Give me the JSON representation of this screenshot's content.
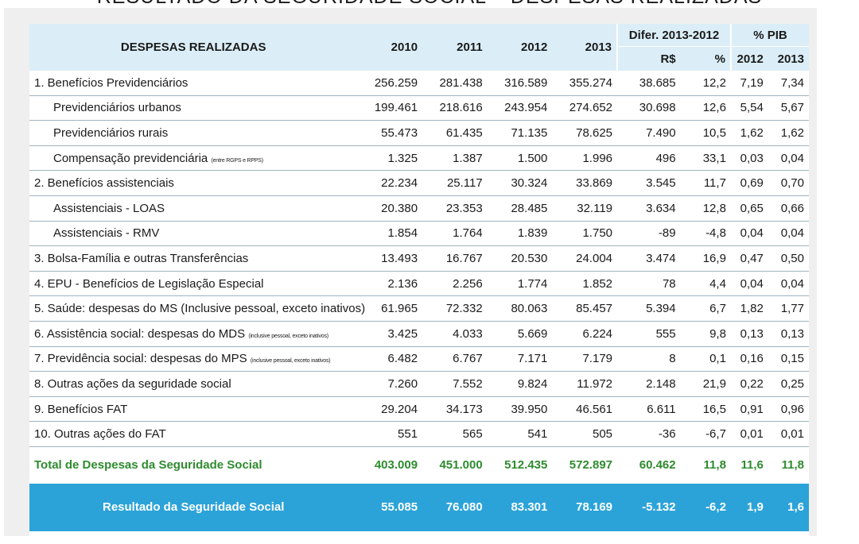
{
  "page_title": "RESULTADO DA SEGURIDADE SOCIAL – DESPESAS REALIZADAS",
  "header": {
    "label": "DESPESAS REALIZADAS",
    "years": [
      "2010",
      "2011",
      "2012",
      "2013"
    ],
    "difer_group": "Difer. 2013-2012",
    "difer_rs": "R$",
    "difer_pct": "%",
    "pib_group": "% PIB",
    "pib_2012": "2012",
    "pib_2013": "2013"
  },
  "rows": [
    {
      "label": "1. Benefícios Previdenciários",
      "note": "",
      "y2010": "256.259",
      "y2011": "281.438",
      "y2012": "316.589",
      "y2013": "355.274",
      "dif_rs": "38.685",
      "dif_pct": "12,2",
      "pib2012": "7,19",
      "pib2013": "7,34"
    },
    {
      "label": "Previdenciários urbanos",
      "note": "",
      "y2010": "199.461",
      "y2011": "218.616",
      "y2012": "243.954",
      "y2013": "274.652",
      "dif_rs": "30.698",
      "dif_pct": "12,6",
      "pib2012": "5,54",
      "pib2013": "5,67"
    },
    {
      "label": "Previdenciários rurais",
      "note": "",
      "y2010": "55.473",
      "y2011": "61.435",
      "y2012": "71.135",
      "y2013": "78.625",
      "dif_rs": "7.490",
      "dif_pct": "10,5",
      "pib2012": "1,62",
      "pib2013": "1,62"
    },
    {
      "label": "Compensação previdenciária",
      "note": "(entre RGPS e RPPS)",
      "y2010": "1.325",
      "y2011": "1.387",
      "y2012": "1.500",
      "y2013": "1.996",
      "dif_rs": "496",
      "dif_pct": "33,1",
      "pib2012": "0,03",
      "pib2013": "0,04"
    },
    {
      "label": "2. Benefícios assistenciais",
      "note": "",
      "y2010": "22.234",
      "y2011": "25.117",
      "y2012": "30.324",
      "y2013": "33.869",
      "dif_rs": "3.545",
      "dif_pct": "11,7",
      "pib2012": "0,69",
      "pib2013": "0,70"
    },
    {
      "label": "Assistenciais - LOAS",
      "note": "",
      "y2010": "20.380",
      "y2011": "23.353",
      "y2012": "28.485",
      "y2013": "32.119",
      "dif_rs": "3.634",
      "dif_pct": "12,8",
      "pib2012": "0,65",
      "pib2013": "0,66"
    },
    {
      "label": "Assistenciais - RMV",
      "note": "",
      "y2010": "1.854",
      "y2011": "1.764",
      "y2012": "1.839",
      "y2013": "1.750",
      "dif_rs": "-89",
      "dif_pct": "-4,8",
      "pib2012": "0,04",
      "pib2013": "0,04"
    },
    {
      "label": "3. Bolsa-Família e outras Transferências",
      "note": "",
      "y2010": "13.493",
      "y2011": "16.767",
      "y2012": "20.530",
      "y2013": "24.004",
      "dif_rs": "3.474",
      "dif_pct": "16,9",
      "pib2012": "0,47",
      "pib2013": "0,50"
    },
    {
      "label": "4. EPU - Benefícios de Legislação Especial",
      "note": "",
      "y2010": "2.136",
      "y2011": "2.256",
      "y2012": "1.774",
      "y2013": "1.852",
      "dif_rs": "78",
      "dif_pct": "4,4",
      "pib2012": "0,04",
      "pib2013": "0,04"
    },
    {
      "label": "5. Saúde: despesas do MS (Inclusive pessoal, exceto inativos)",
      "note": "",
      "y2010": "61.965",
      "y2011": "72.332",
      "y2012": "80.063",
      "y2013": "85.457",
      "dif_rs": "5.394",
      "dif_pct": "6,7",
      "pib2012": "1,82",
      "pib2013": "1,77"
    },
    {
      "label": "6. Assistência social: despesas do MDS",
      "note": "(inclusive pessoal, exceto inativos)",
      "y2010": "3.425",
      "y2011": "4.033",
      "y2012": "5.669",
      "y2013": "6.224",
      "dif_rs": "555",
      "dif_pct": "9,8",
      "pib2012": "0,13",
      "pib2013": "0,13"
    },
    {
      "label": "7. Previdência social: despesas do MPS",
      "note": "(inclusive pessoal, exceto inativos)",
      "y2010": "6.482",
      "y2011": "6.767",
      "y2012": "7.171",
      "y2013": "7.179",
      "dif_rs": "8",
      "dif_pct": "0,1",
      "pib2012": "0,16",
      "pib2013": "0,15"
    },
    {
      "label": "8. Outras ações da seguridade social",
      "note": "",
      "y2010": "7.260",
      "y2011": "7.552",
      "y2012": "9.824",
      "y2013": "11.972",
      "dif_rs": "2.148",
      "dif_pct": "21,9",
      "pib2012": "0,22",
      "pib2013": "0,25"
    },
    {
      "label": "9. Benefícios FAT",
      "note": "",
      "y2010": "29.204",
      "y2011": "34.173",
      "y2012": "39.950",
      "y2013": "46.561",
      "dif_rs": "6.611",
      "dif_pct": "16,5",
      "pib2012": "0,91",
      "pib2013": "0,96"
    },
    {
      "label": "10. Outras ações do FAT",
      "note": "",
      "y2010": "551",
      "y2011": "565",
      "y2012": "541",
      "y2013": "505",
      "dif_rs": "-36",
      "dif_pct": "-6,7",
      "pib2012": "0,01",
      "pib2013": "0,01"
    }
  ],
  "total": {
    "label": "Total de Despesas da Seguridade Social",
    "y2010": "403.009",
    "y2011": "451.000",
    "y2012": "512.435",
    "y2013": "572.897",
    "dif_rs": "60.462",
    "dif_pct": "11,8",
    "pib2012": "11,6",
    "pib2013": "11,8"
  },
  "result": {
    "label": "Resultado da Seguridade Social",
    "y2010": "55.085",
    "y2011": "76.080",
    "y2012": "83.301",
    "y2013": "78.169",
    "dif_rs": "-5.132",
    "dif_pct": "-6,2",
    "pib2012": "1,9",
    "pib2013": "1,6"
  },
  "colors": {
    "header_bg": "#dbeef8",
    "total_text": "#2e8b2e",
    "result_bg": "#2ba3d9"
  }
}
